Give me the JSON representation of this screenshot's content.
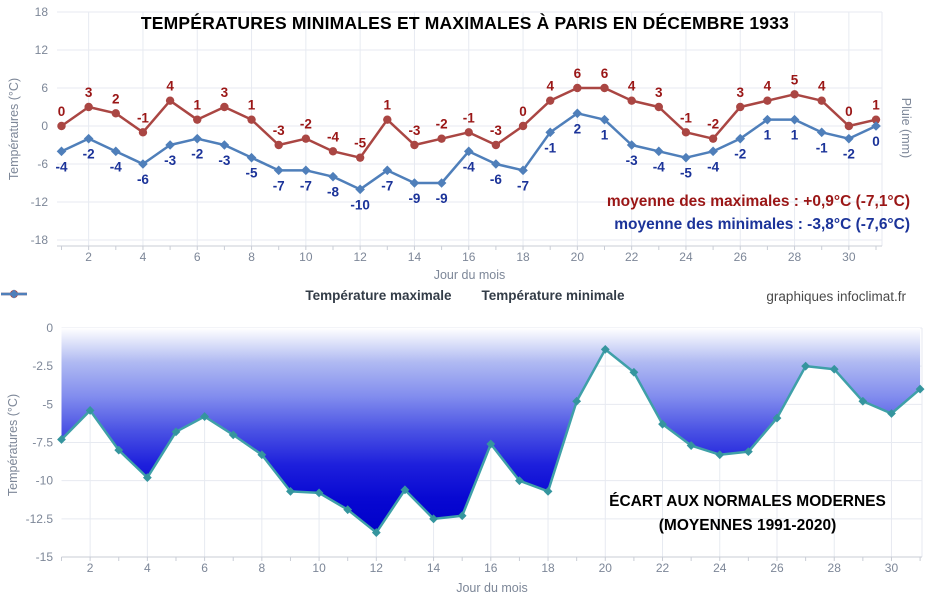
{
  "watermark": "graphiques infoclimat.fr",
  "chart_data": [
    {
      "type": "line",
      "title": "TEMPÉRATURES MINIMALES ET MAXIMALES À PARIS EN DÉCEMBRE 1933",
      "xlabel": "Jour du mois",
      "ylabel_left": "Températures (°C)",
      "ylabel_right": "Pluie (mm)",
      "ylim": [
        -18,
        18
      ],
      "y_ticks": [
        18,
        12,
        6,
        0,
        -6,
        -12,
        -18
      ],
      "x_ticks": [
        2,
        4,
        6,
        8,
        10,
        12,
        14,
        16,
        18,
        20,
        22,
        24,
        26,
        28,
        30
      ],
      "x": [
        1,
        2,
        3,
        4,
        5,
        6,
        7,
        8,
        9,
        10,
        11,
        12,
        13,
        14,
        15,
        16,
        17,
        18,
        19,
        20,
        21,
        22,
        23,
        24,
        25,
        26,
        27,
        28,
        29,
        30,
        31
      ],
      "series": [
        {
          "name": "Température maximale",
          "marker": "circle",
          "color": "#AA4643",
          "label_color": "#9A1616",
          "values": [
            0,
            3,
            2,
            -1,
            4,
            1,
            3,
            1,
            -3,
            -2,
            -4,
            -5,
            1,
            -3,
            -2,
            -1,
            -3,
            0,
            4,
            6,
            6,
            4,
            3,
            -1,
            -2,
            3,
            4,
            5,
            4,
            0,
            1
          ]
        },
        {
          "name": "Température minimale",
          "marker": "diamond",
          "color": "#4F7FBA",
          "label_color": "#1B3399",
          "values": [
            -4,
            -2,
            -4,
            -6,
            -3,
            -2,
            -3,
            -5,
            -7,
            -7,
            -8,
            -10,
            -7,
            -9,
            -9,
            -4,
            -6,
            -7,
            -1,
            2,
            1,
            -3,
            -4,
            -5,
            -4,
            -2,
            1,
            1,
            -1,
            -2,
            0
          ]
        }
      ],
      "annotations": [
        {
          "text": "moyenne des maximales : +0,9°C (-7,1°C)",
          "color": "#9A1616"
        },
        {
          "text": "moyenne des minimales : -3,8°C (-7,6°C)",
          "color": "#1B3399"
        }
      ],
      "legend_position": "bottom",
      "grid": true
    },
    {
      "type": "area",
      "xlabel": "Jour du mois",
      "ylabel": "Températures (°C)",
      "ylim": [
        -15,
        0
      ],
      "y_tick_labels": [
        "0",
        "-2.5",
        "-5",
        "-7.5",
        "-10",
        "-12.5",
        "-15"
      ],
      "x_ticks": [
        2,
        4,
        6,
        8,
        10,
        12,
        14,
        16,
        18,
        20,
        22,
        24,
        26,
        28,
        30
      ],
      "x": [
        1,
        2,
        3,
        4,
        5,
        6,
        7,
        8,
        9,
        10,
        11,
        12,
        13,
        14,
        15,
        16,
        17,
        18,
        19,
        20,
        21,
        22,
        23,
        24,
        25,
        26,
        27,
        28,
        29,
        30,
        31
      ],
      "values": [
        -7.3,
        -5.4,
        -8.0,
        -9.8,
        -6.8,
        -5.8,
        -7.0,
        -8.3,
        -10.7,
        -10.8,
        -11.9,
        -13.4,
        -10.6,
        -12.5,
        -12.3,
        -7.6,
        -10.0,
        -10.7,
        -4.8,
        -1.4,
        -2.9,
        -6.3,
        -7.7,
        -8.3,
        -8.1,
        -5.9,
        -2.5,
        -2.7,
        -4.8,
        -5.6,
        -4.0
      ],
      "line_color": "#3FA0A8",
      "marker_color": "#35959E",
      "fill_gradient": [
        "#FFFFFF",
        "#B0BAF2",
        "#828DEE",
        "#4B53E4",
        "#1E20DC",
        "#0808D2",
        "#0000C8"
      ],
      "annotation": [
        "ÉCART AUX NORMALES MODERNES",
        "(MOYENNES 1991-2020)"
      ],
      "grid": true
    }
  ]
}
